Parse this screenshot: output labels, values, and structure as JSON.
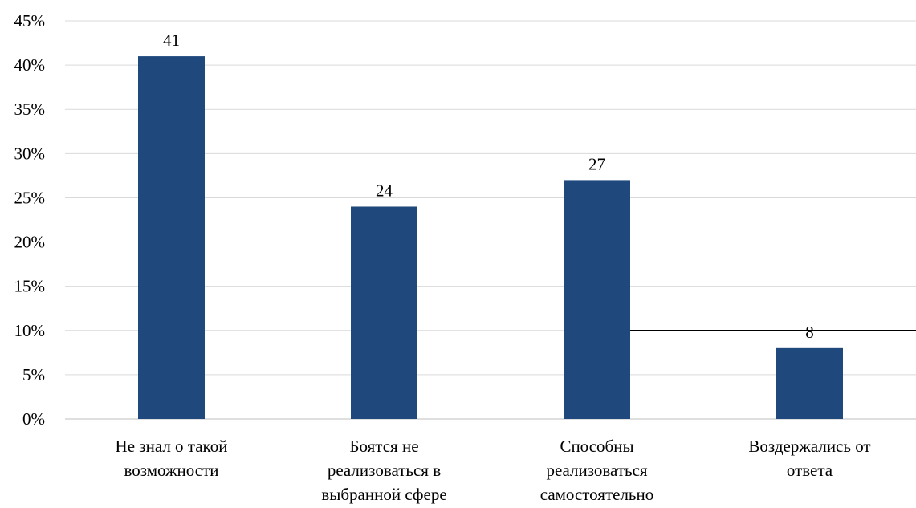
{
  "chart_data": {
    "type": "bar",
    "title": "",
    "xlabel": "",
    "ylabel": "",
    "categories": [
      [
        "Не знал о такой",
        "возможности"
      ],
      [
        "Боятся не",
        "реализоваться в",
        "выбранной сфере"
      ],
      [
        "Способны",
        "реализоваться",
        "самостоятельно"
      ],
      [
        "Воздержались от",
        "ответа"
      ]
    ],
    "values": [
      41,
      24,
      27,
      8
    ],
    "data_labels": [
      "41",
      "24",
      "27",
      "8"
    ],
    "ylim": [
      0,
      45
    ],
    "yticks": [
      0,
      5,
      10,
      15,
      20,
      25,
      30,
      35,
      40,
      45
    ],
    "ytick_labels": [
      "0%",
      "5%",
      "10%",
      "15%",
      "20%",
      "25%",
      "30%",
      "35%",
      "40%",
      "45%"
    ],
    "grid": true,
    "legend": "none",
    "reference_line": {
      "y": 10,
      "from_category": 2
    },
    "colors": {
      "bar": "#1F497D",
      "grid": "#D9D9D9",
      "axis": "#BFBFBF",
      "reference_line": "#000000"
    }
  }
}
